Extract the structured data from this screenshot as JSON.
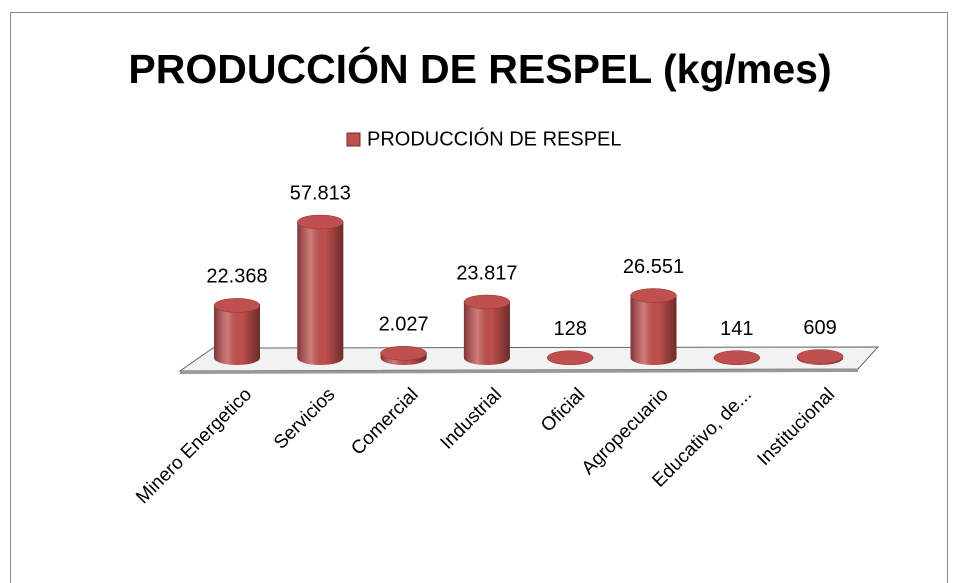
{
  "chart_data": {
    "type": "bar3d",
    "title": "PRODUCCIÓN DE RESPEL (kg/mes)",
    "categories": [
      "Minero Energetico",
      "Servicios",
      "Comercial",
      "Industrial",
      "Oficial",
      "Agropecuario",
      "Educativo, de...",
      "Institucional"
    ],
    "series": [
      {
        "name": "PRODUCCIÓN DE RESPEL",
        "color": "#c0504d",
        "values": [
          22368,
          57813,
          2027,
          23817,
          128,
          26551,
          141,
          609
        ],
        "value_labels": [
          "22.368",
          "57.813",
          "2.027",
          "23.817",
          "128",
          "26.551",
          "141",
          "609"
        ]
      }
    ],
    "legend": "top"
  }
}
